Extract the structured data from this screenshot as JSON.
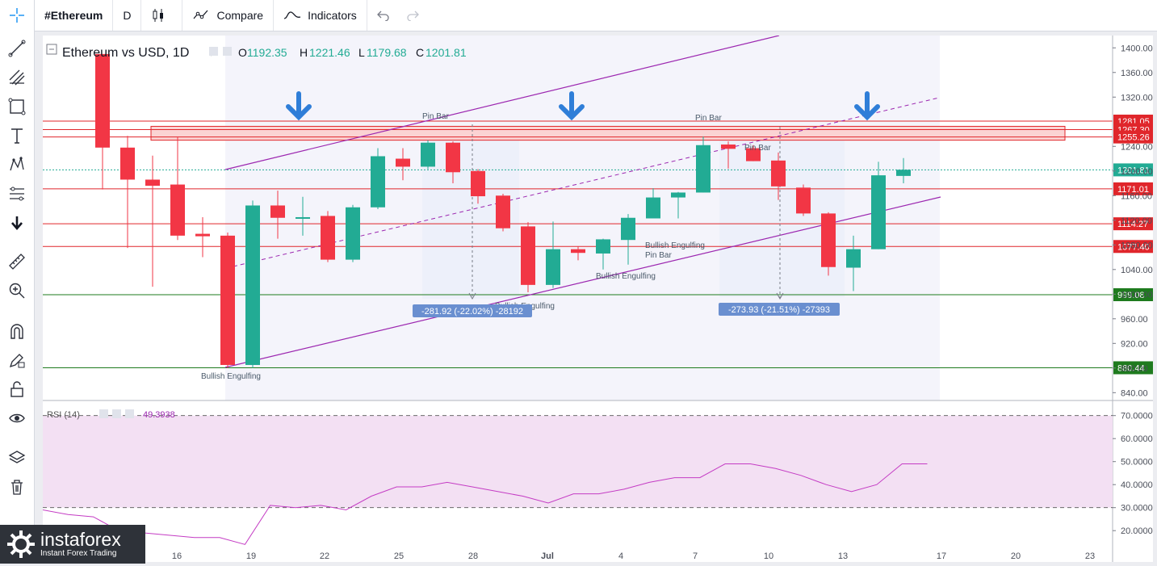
{
  "toolbar": {
    "symbol": "#Ethereum",
    "interval": "D",
    "compare_label": "Compare",
    "indicators_label": "Indicators"
  },
  "left_tools": [
    "crosshair-icon",
    "trend-line-icon",
    "pitchfork-icon",
    "rectangle-icon",
    "text-icon",
    "pattern-icon",
    "fib-icon",
    "arrow-down-icon",
    "ruler-icon",
    "zoom-in-icon",
    "magnet-icon",
    "pencil-lock-icon",
    "lock-icon",
    "eye-icon",
    "layers-icon",
    "trash-icon"
  ],
  "legend": {
    "title": "Ethereum vs USD, 1D",
    "o_label": "O",
    "o": "1192.35",
    "h_label": "H",
    "h": "1221.46",
    "l_label": "L",
    "l": "1179.68",
    "c_label": "C",
    "c": "1201.81"
  },
  "rsi_legend": {
    "title": "RSI (14)",
    "value": "49.3938"
  },
  "logo": {
    "brand": "instaforex",
    "tagline": "Instant Forex Trading"
  },
  "colors": {
    "up": "#22ab94",
    "down": "#f23645",
    "level": "#e0262b",
    "support": "#1e7b1e",
    "channel": "#9c27b0",
    "arrow": "#2f7ed8",
    "rsi": "#c43cc4"
  },
  "chart_data": {
    "type": "candlestick",
    "x_tick_labels": [
      "16",
      "19",
      "22",
      "25",
      "28",
      "Jul",
      "4",
      "7",
      "10",
      "13",
      "17",
      "20",
      "23"
    ],
    "y_ticks": [
      "1400.00",
      "1360.00",
      "1320.00",
      "1240.00",
      "1200.00",
      "1160.00",
      "1120.00",
      "1080.00",
      "1040.00",
      "1000.00",
      "960.00",
      "920.00",
      "880.00",
      "840.00"
    ],
    "y_range": [
      826,
      1420
    ],
    "candles": [
      {
        "o": 1390,
        "h": 1390,
        "l": 1170,
        "c": 1238
      },
      {
        "o": 1238,
        "h": 1257,
        "l": 1075,
        "c": 1186
      },
      {
        "o": 1186,
        "h": 1225,
        "l": 1012,
        "c": 1176
      },
      {
        "o": 1178,
        "h": 1255,
        "l": 1088,
        "c": 1095
      },
      {
        "o": 1098,
        "h": 1125,
        "l": 1060,
        "c": 1094
      },
      {
        "o": 1095,
        "h": 1100,
        "l": 880,
        "c": 885
      },
      {
        "o": 885,
        "h": 1152,
        "l": 880,
        "c": 1144
      },
      {
        "o": 1144,
        "h": 1168,
        "l": 1090,
        "c": 1124
      },
      {
        "o": 1124,
        "h": 1158,
        "l": 1095,
        "c": 1125
      },
      {
        "o": 1127,
        "h": 1135,
        "l": 1052,
        "c": 1056
      },
      {
        "o": 1056,
        "h": 1145,
        "l": 1052,
        "c": 1141
      },
      {
        "o": 1141,
        "h": 1237,
        "l": 1138,
        "c": 1224
      },
      {
        "o": 1220,
        "h": 1237,
        "l": 1185,
        "c": 1207
      },
      {
        "o": 1207,
        "h": 1250,
        "l": 1203,
        "c": 1246
      },
      {
        "o": 1246,
        "h": 1248,
        "l": 1180,
        "c": 1198
      },
      {
        "o": 1200,
        "h": 1203,
        "l": 1147,
        "c": 1159
      },
      {
        "o": 1160,
        "h": 1163,
        "l": 1102,
        "c": 1107
      },
      {
        "o": 1110,
        "h": 1117,
        "l": 1003,
        "c": 1015
      },
      {
        "o": 1015,
        "h": 1118,
        "l": 1010,
        "c": 1073
      },
      {
        "o": 1073,
        "h": 1077,
        "l": 1055,
        "c": 1067
      },
      {
        "o": 1066,
        "h": 1090,
        "l": 1040,
        "c": 1089
      },
      {
        "o": 1088,
        "h": 1130,
        "l": 1048,
        "c": 1124
      },
      {
        "o": 1123,
        "h": 1172,
        "l": 1123,
        "c": 1157
      },
      {
        "o": 1157,
        "h": 1166,
        "l": 1123,
        "c": 1165
      },
      {
        "o": 1165,
        "h": 1256,
        "l": 1165,
        "c": 1242
      },
      {
        "o": 1243,
        "h": 1248,
        "l": 1204,
        "c": 1236
      },
      {
        "o": 1237,
        "h": 1242,
        "l": 1216,
        "c": 1216
      },
      {
        "o": 1217,
        "h": 1230,
        "l": 1153,
        "c": 1175
      },
      {
        "o": 1173,
        "h": 1178,
        "l": 1127,
        "c": 1131
      },
      {
        "o": 1131,
        "h": 1133,
        "l": 1030,
        "c": 1044
      },
      {
        "o": 1043,
        "h": 1095,
        "l": 1005,
        "c": 1073
      },
      {
        "o": 1073,
        "h": 1215,
        "l": 1073,
        "c": 1193
      },
      {
        "o": 1192,
        "h": 1221,
        "l": 1180,
        "c": 1202
      }
    ],
    "levels": [
      {
        "price": 1281.05,
        "label": "1281.05",
        "type": "resistance"
      },
      {
        "price": 1267.3,
        "label": "1267.30",
        "type": "resistance"
      },
      {
        "price": 1255.26,
        "label": "1255.26",
        "type": "resistance"
      },
      {
        "price": 1171.01,
        "label": "1171.01",
        "type": "resistance"
      },
      {
        "price": 1114.27,
        "label": "1114.27",
        "type": "resistance"
      },
      {
        "price": 1077.4,
        "label": "1077.40",
        "type": "resistance"
      },
      {
        "price": 999.08,
        "label": "999.08",
        "type": "support"
      },
      {
        "price": 880.44,
        "label": "880.44",
        "type": "support"
      }
    ],
    "current_price": {
      "price": 1201.81,
      "label": "1201.81"
    },
    "pattern_labels": [
      "Bullish Engulfing",
      "Pin Bar",
      "Bullish Engulfing",
      "Bullish Engulfing",
      "Bullish Engulfing",
      "Pin Bar",
      "Pin Bar",
      "Pin Bar"
    ],
    "measurements": [
      "-281.92 (-22.02%) -28192",
      "-273.93 (-21.51%) -27393"
    ],
    "rsi": {
      "y_range": [
        12,
        72
      ],
      "y_ticks": [
        "70.0000",
        "60.0000",
        "50.0000",
        "40.0000",
        "30.0000",
        "20.0000"
      ],
      "bands": [
        30,
        70
      ],
      "values": [
        29,
        27,
        26,
        20,
        19,
        18,
        17,
        17,
        14,
        31,
        30,
        31,
        29,
        35,
        39,
        39,
        41,
        39,
        37,
        35,
        32,
        36,
        36,
        38,
        41,
        43,
        43,
        49,
        49,
        47,
        44,
        40,
        37,
        40,
        49,
        49
      ]
    }
  }
}
